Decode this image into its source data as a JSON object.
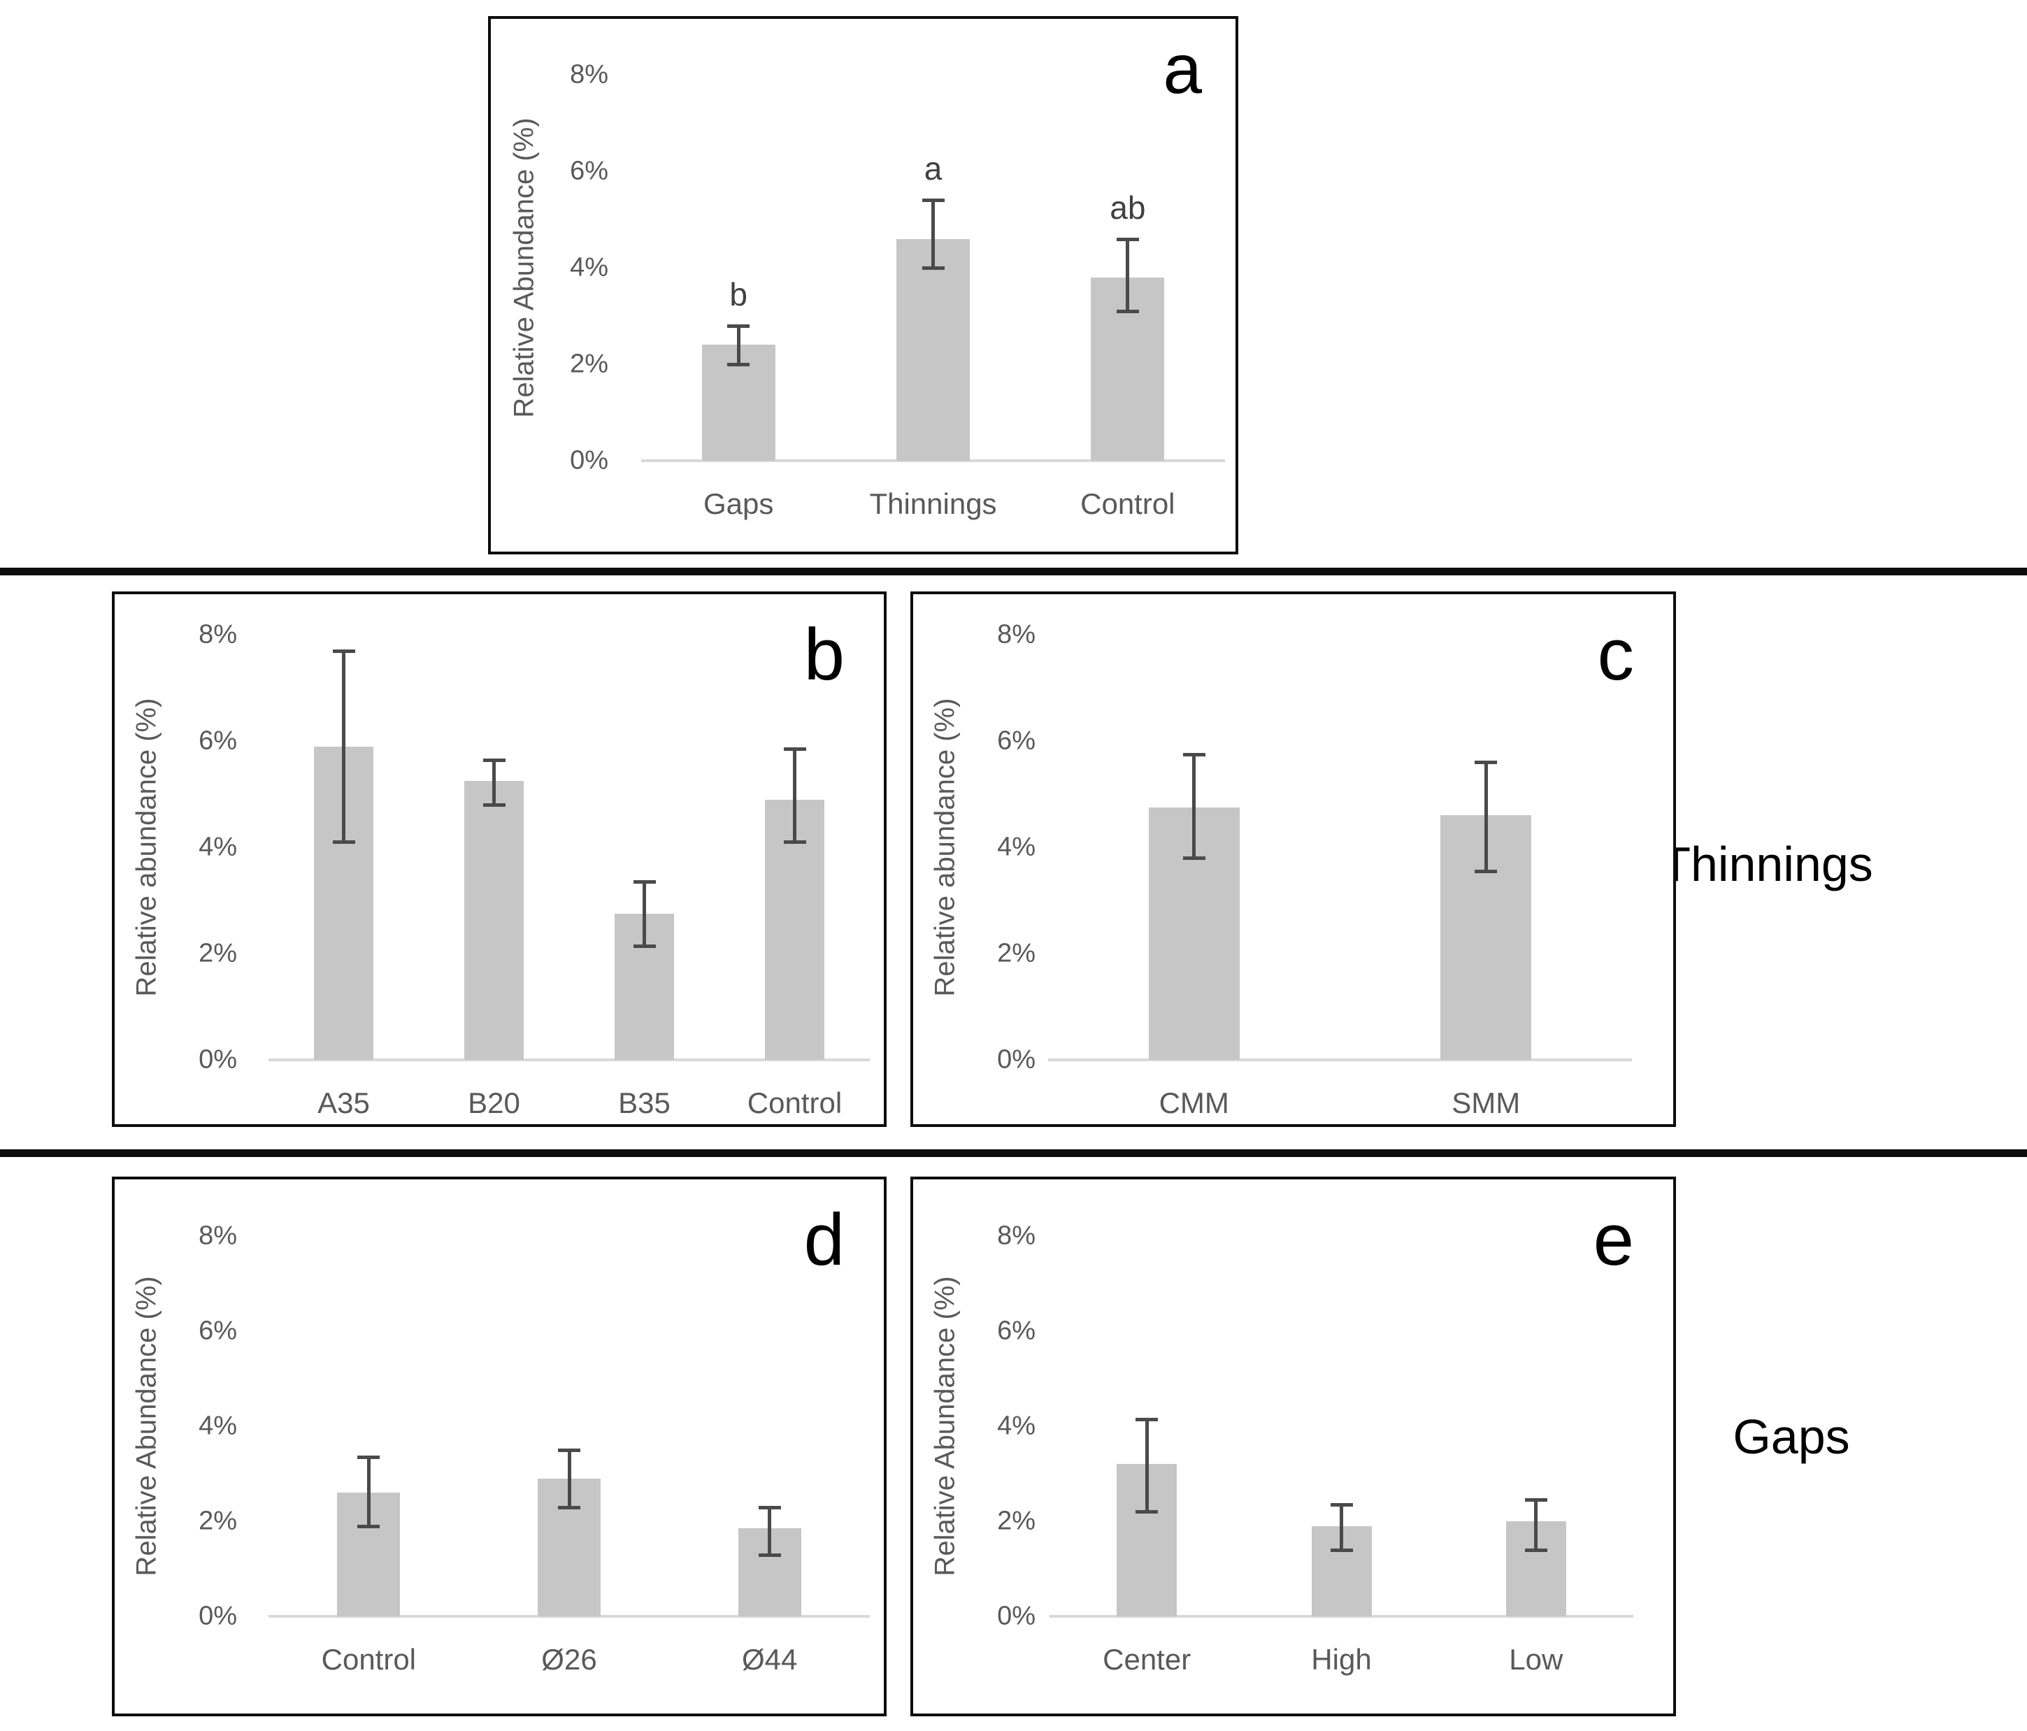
{
  "side_labels": [
    {
      "text": "Thinnings"
    },
    {
      "text": "Gaps"
    }
  ],
  "colors": {
    "bar_fill": "#c6c6c7",
    "error_bar": "#4a4a4a",
    "axis_text": "#595959",
    "baseline": "#d9d9d9",
    "panel_border": "#0d0d0d",
    "separator": "#0d0d0d",
    "panel_letter": "#000000",
    "sig_letter": "#404040"
  },
  "chart_data": [
    {
      "id": "a",
      "type": "bar",
      "panel_label": "a",
      "title": "",
      "xlabel": "",
      "ylabel": "Relative Abundance (%)",
      "categories": [
        "Gaps",
        "Thinnings",
        "Control"
      ],
      "values": [
        2.4,
        4.6,
        3.8
      ],
      "errors_low": [
        2.0,
        4.0,
        3.1
      ],
      "errors_high": [
        2.8,
        5.4,
        4.6
      ],
      "sig_letters": [
        "b",
        "a",
        "ab"
      ],
      "yticks": [
        "0%",
        "2%",
        "4%",
        "6%",
        "8%"
      ],
      "ylim": [
        0,
        8
      ],
      "grid": false,
      "legend": "none"
    },
    {
      "id": "b",
      "type": "bar",
      "panel_label": "b",
      "title": "",
      "xlabel": "",
      "ylabel": "Relative abundance (%)",
      "categories": [
        "A35",
        "B20",
        "B35",
        "Control"
      ],
      "values": [
        5.9,
        5.25,
        2.75,
        4.9
      ],
      "errors_low": [
        4.1,
        4.8,
        2.15,
        4.1
      ],
      "errors_high": [
        7.7,
        5.65,
        3.35,
        5.85
      ],
      "sig_letters": [
        "",
        "",
        "",
        ""
      ],
      "yticks": [
        "0%",
        "2%",
        "4%",
        "6%",
        "8%"
      ],
      "ylim": [
        0,
        8
      ],
      "grid": false,
      "legend": "none"
    },
    {
      "id": "c",
      "type": "bar",
      "panel_label": "c",
      "title": "",
      "xlabel": "",
      "ylabel": "Relative abundance (%)",
      "categories": [
        "CMM",
        "SMM"
      ],
      "values": [
        4.75,
        4.6
      ],
      "errors_low": [
        3.8,
        3.55
      ],
      "errors_high": [
        5.75,
        5.6
      ],
      "sig_letters": [
        "",
        ""
      ],
      "yticks": [
        "0%",
        "2%",
        "4%",
        "6%",
        "8%"
      ],
      "ylim": [
        0,
        8
      ],
      "grid": false,
      "legend": "none"
    },
    {
      "id": "d",
      "type": "bar",
      "panel_label": "d",
      "title": "",
      "xlabel": "",
      "ylabel": "Relative Abundance (%)",
      "categories": [
        "Control",
        "Ø26",
        "Ø44"
      ],
      "values": [
        2.6,
        2.9,
        1.85
      ],
      "errors_low": [
        1.9,
        2.3,
        1.3
      ],
      "errors_high": [
        3.35,
        3.5,
        2.3
      ],
      "sig_letters": [
        "",
        "",
        ""
      ],
      "yticks": [
        "0%",
        "2%",
        "4%",
        "6%",
        "8%"
      ],
      "ylim": [
        0,
        8
      ],
      "grid": false,
      "legend": "none"
    },
    {
      "id": "e",
      "type": "bar",
      "panel_label": "e",
      "title": "",
      "xlabel": "",
      "ylabel": "Relative Abundance (%)",
      "categories": [
        "Center",
        "High",
        "Low"
      ],
      "values": [
        3.2,
        1.9,
        2.0
      ],
      "errors_low": [
        2.2,
        1.4,
        1.4
      ],
      "errors_high": [
        4.15,
        2.35,
        2.45
      ],
      "sig_letters": [
        "",
        "",
        ""
      ],
      "yticks": [
        "0%",
        "2%",
        "4%",
        "6%",
        "8%"
      ],
      "ylim": [
        0,
        8
      ],
      "grid": false,
      "legend": "none"
    }
  ]
}
